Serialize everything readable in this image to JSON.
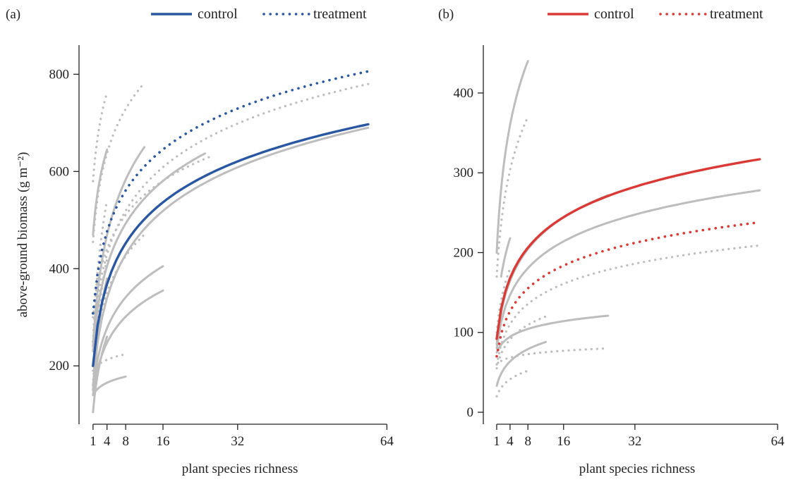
{
  "chart_data": [
    {
      "type": "line",
      "panel_label": "(a)",
      "xlabel": "plant species richness",
      "ylabel": "above-ground biomass (g m⁻²)",
      "xlim": [
        -2,
        70
      ],
      "ylim": [
        80,
        860
      ],
      "x_ticks": [
        1,
        4,
        8,
        16,
        32,
        64
      ],
      "y_ticks": [
        200,
        400,
        600,
        800
      ],
      "legend": {
        "position": "top-right",
        "entries": [
          {
            "label": "control",
            "style": "solid"
          },
          {
            "label": "treatment",
            "style": "dotted"
          }
        ]
      },
      "colors": {
        "highlight": "#2a57a1",
        "grey": "#bdbdbd"
      },
      "series": [
        {
          "name": "control",
          "style": "solid",
          "highlight": true,
          "x": [
            1,
            60
          ],
          "y": [
            200,
            697
          ]
        },
        {
          "name": "treatment",
          "style": "dotted",
          "highlight": true,
          "x": [
            1,
            60
          ],
          "y": [
            308,
            806
          ]
        }
      ],
      "study_curves": [
        {
          "style": "solid",
          "x": [
            1,
            4
          ],
          "y": [
            470,
            645
          ]
        },
        {
          "style": "solid",
          "x": [
            1,
            12
          ],
          "y": [
            240,
            650
          ]
        },
        {
          "style": "solid",
          "x": [
            1,
            25
          ],
          "y": [
            230,
            637
          ]
        },
        {
          "style": "solid",
          "x": [
            1,
            60
          ],
          "y": [
            160,
            690
          ]
        },
        {
          "style": "solid",
          "x": [
            1,
            16
          ],
          "y": [
            150,
            405
          ]
        },
        {
          "style": "solid",
          "x": [
            1,
            16
          ],
          "y": [
            140,
            355
          ]
        },
        {
          "style": "solid",
          "x": [
            1,
            8
          ],
          "y": [
            140,
            178
          ]
        },
        {
          "style": "solid",
          "x": [
            1,
            4
          ],
          "y": [
            105,
            260
          ]
        },
        {
          "style": "solid",
          "x": [
            1,
            4
          ],
          "y": [
            150,
            380
          ]
        },
        {
          "style": "dotted",
          "x": [
            1,
            4
          ],
          "y": [
            580,
            762
          ]
        },
        {
          "style": "dotted",
          "x": [
            1,
            12
          ],
          "y": [
            455,
            782
          ]
        },
        {
          "style": "dotted",
          "x": [
            1,
            26
          ],
          "y": [
            300,
            630
          ]
        },
        {
          "style": "dotted",
          "x": [
            1,
            60
          ],
          "y": [
            250,
            780
          ]
        },
        {
          "style": "dotted",
          "x": [
            1,
            8
          ],
          "y": [
            190,
            224
          ]
        },
        {
          "style": "dotted",
          "x": [
            1,
            4
          ],
          "y": [
            250,
            540
          ]
        },
        {
          "style": "dotted",
          "x": [
            1,
            12
          ],
          "y": [
            200,
            470
          ]
        },
        {
          "style": "dotted",
          "x": [
            1,
            4
          ],
          "y": [
            160,
            420
          ]
        }
      ]
    },
    {
      "type": "line",
      "panel_label": "(b)",
      "xlabel": "plant species richness",
      "ylabel": "",
      "xlim": [
        -2,
        70
      ],
      "ylim": [
        -15,
        460
      ],
      "x_ticks": [
        1,
        4,
        8,
        16,
        32,
        64
      ],
      "y_ticks": [
        0,
        100,
        200,
        300,
        400
      ],
      "legend": {
        "position": "top-right",
        "entries": [
          {
            "label": "control",
            "style": "solid"
          },
          {
            "label": "treatment",
            "style": "dotted"
          }
        ]
      },
      "colors": {
        "highlight": "#d93a35",
        "grey": "#bdbdbd"
      },
      "series": [
        {
          "name": "control",
          "style": "solid",
          "highlight": true,
          "x": [
            1,
            60
          ],
          "y": [
            92,
            317
          ]
        },
        {
          "name": "treatment",
          "style": "dotted",
          "highlight": true,
          "x": [
            1,
            60
          ],
          "y": [
            70,
            238
          ]
        }
      ],
      "study_curves": [
        {
          "style": "solid",
          "x": [
            1,
            8
          ],
          "y": [
            200,
            440
          ]
        },
        {
          "style": "solid",
          "x": [
            2,
            4
          ],
          "y": [
            170,
            218
          ]
        },
        {
          "style": "solid",
          "x": [
            1,
            60
          ],
          "y": [
            80,
            278
          ]
        },
        {
          "style": "solid",
          "x": [
            1,
            26
          ],
          "y": [
            85,
            272
          ]
        },
        {
          "style": "solid",
          "x": [
            1,
            26
          ],
          "y": [
            75,
            121
          ]
        },
        {
          "style": "solid",
          "x": [
            1,
            12
          ],
          "y": [
            33,
            88
          ]
        },
        {
          "style": "dotted",
          "x": [
            1,
            8
          ],
          "y": [
            170,
            370
          ]
        },
        {
          "style": "dotted",
          "x": [
            1,
            60
          ],
          "y": [
            60,
            209
          ]
        },
        {
          "style": "dotted",
          "x": [
            1,
            26
          ],
          "y": [
            60,
            80
          ]
        },
        {
          "style": "dotted",
          "x": [
            1,
            8
          ],
          "y": [
            20,
            52
          ]
        },
        {
          "style": "dotted",
          "x": [
            1,
            4
          ],
          "y": [
            100,
            180
          ]
        },
        {
          "style": "dotted",
          "x": [
            1,
            12
          ],
          "y": [
            55,
            120
          ]
        }
      ]
    }
  ]
}
